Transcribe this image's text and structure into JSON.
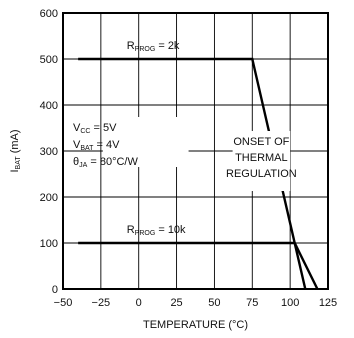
{
  "chart_data": {
    "type": "line",
    "xlabel": "TEMPERATURE (°C)",
    "ylabel": {
      "base": "I",
      "sub": "BAT",
      "rest": " (mA)"
    },
    "xlim": [
      -50,
      125
    ],
    "ylim": [
      0,
      600
    ],
    "xticks": [
      -50,
      -25,
      0,
      25,
      50,
      75,
      100,
      125
    ],
    "yticks": [
      0,
      100,
      200,
      300,
      400,
      500,
      600
    ],
    "grid": true,
    "series": [
      {
        "points": [
          [
            -40,
            500
          ],
          [
            75,
            500
          ],
          [
            110,
            0
          ]
        ]
      },
      {
        "points": [
          [
            -40,
            100
          ],
          [
            103,
            100
          ],
          [
            118,
            0
          ]
        ]
      }
    ],
    "annotations": {
      "rprog_2k": {
        "base": "R",
        "sub": "PROG",
        "rest": " = 2k"
      },
      "rprog_10k": {
        "base": "R",
        "sub": "PROG",
        "rest": " = 10k"
      },
      "conditions": [
        {
          "base": "V",
          "sub": "CC",
          "rest": " = 5V"
        },
        {
          "base": "V",
          "sub": "BAT",
          "rest": " = 4V"
        },
        {
          "base": "θ",
          "sub": "JA",
          "rest": " = 80°C/W"
        }
      ],
      "onset": [
        "ONSET OF",
        "THERMAL",
        "REGULATION"
      ]
    }
  }
}
